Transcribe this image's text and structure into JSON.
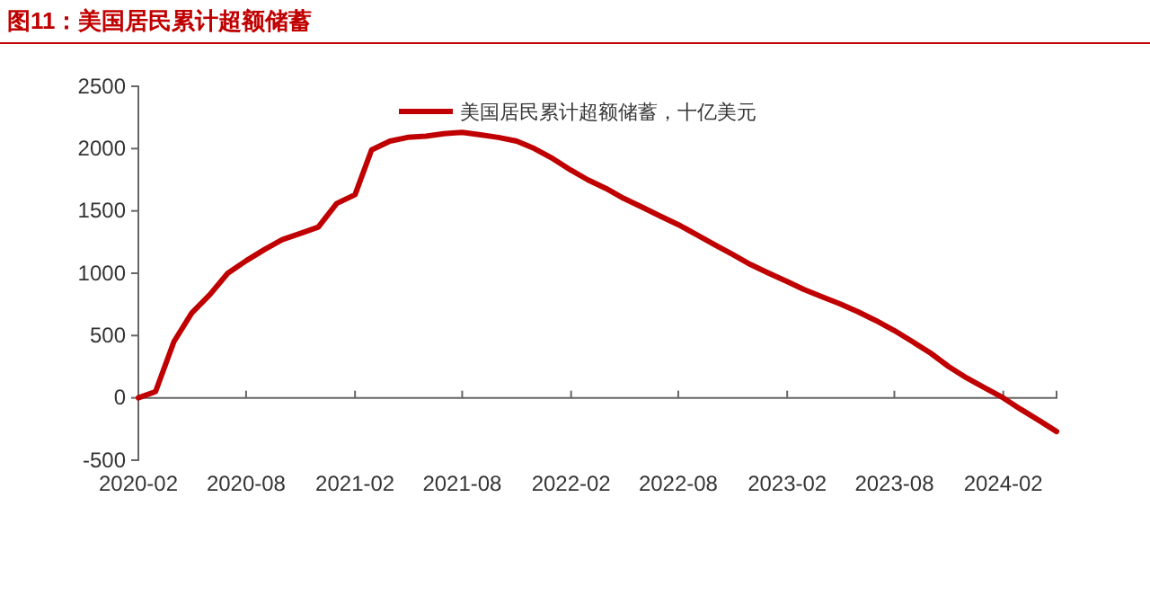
{
  "chart_data": {
    "type": "line",
    "title": "图11：美国居民累计超额储蓄",
    "x": [
      "2020-02",
      "2020-03",
      "2020-04",
      "2020-05",
      "2020-06",
      "2020-07",
      "2020-08",
      "2020-09",
      "2020-10",
      "2020-11",
      "2020-12",
      "2021-01",
      "2021-02",
      "2021-03",
      "2021-04",
      "2021-05",
      "2021-06",
      "2021-07",
      "2021-08",
      "2021-09",
      "2021-10",
      "2021-11",
      "2021-12",
      "2022-01",
      "2022-02",
      "2022-03",
      "2022-04",
      "2022-05",
      "2022-06",
      "2022-07",
      "2022-08",
      "2022-09",
      "2022-10",
      "2022-11",
      "2022-12",
      "2023-01",
      "2023-02",
      "2023-03",
      "2023-04",
      "2023-05",
      "2023-06",
      "2023-07",
      "2023-08",
      "2023-09",
      "2023-10",
      "2023-11",
      "2023-12",
      "2024-01",
      "2024-02",
      "2024-03",
      "2024-04",
      "2024-05"
    ],
    "series": [
      {
        "name": "美国居民累计超额储蓄，十亿美元",
        "color": "#c00000",
        "values": [
          0,
          50,
          450,
          680,
          830,
          1000,
          1100,
          1190,
          1270,
          1320,
          1370,
          1560,
          1630,
          1990,
          2060,
          2090,
          2100,
          2120,
          2130,
          2110,
          2090,
          2060,
          2000,
          1920,
          1826,
          1750,
          1680,
          1600,
          1530,
          1460,
          1390,
          1310,
          1230,
          1150,
          1070,
          1000,
          933,
          870,
          810,
          755,
          690,
          620,
          540,
          450,
          360,
          250,
          160,
          80,
          0,
          -90,
          -180,
          -270
        ]
      }
    ],
    "xlim": [
      "2020-02",
      "2024-05"
    ],
    "xticks": [
      {
        "value": "2020-02",
        "label": "2020-02"
      },
      {
        "value": "2020-08",
        "label": "2020-08"
      },
      {
        "value": "2021-02",
        "label": "2021-02"
      },
      {
        "value": "2021-08",
        "label": "2021-08"
      },
      {
        "value": "2022-02",
        "label": "2022-02"
      },
      {
        "value": "2022-08",
        "label": "2022-08"
      },
      {
        "value": "2023-02",
        "label": "2023-02"
      },
      {
        "value": "2023-08",
        "label": "2023-08"
      },
      {
        "value": "2024-02",
        "label": "2024-02"
      }
    ],
    "ylim": [
      -500,
      2500
    ],
    "yticks": [
      -500,
      0,
      500,
      1000,
      1500,
      2000,
      2500
    ],
    "legend": "top",
    "marker": "none",
    "line_style": "solid"
  }
}
